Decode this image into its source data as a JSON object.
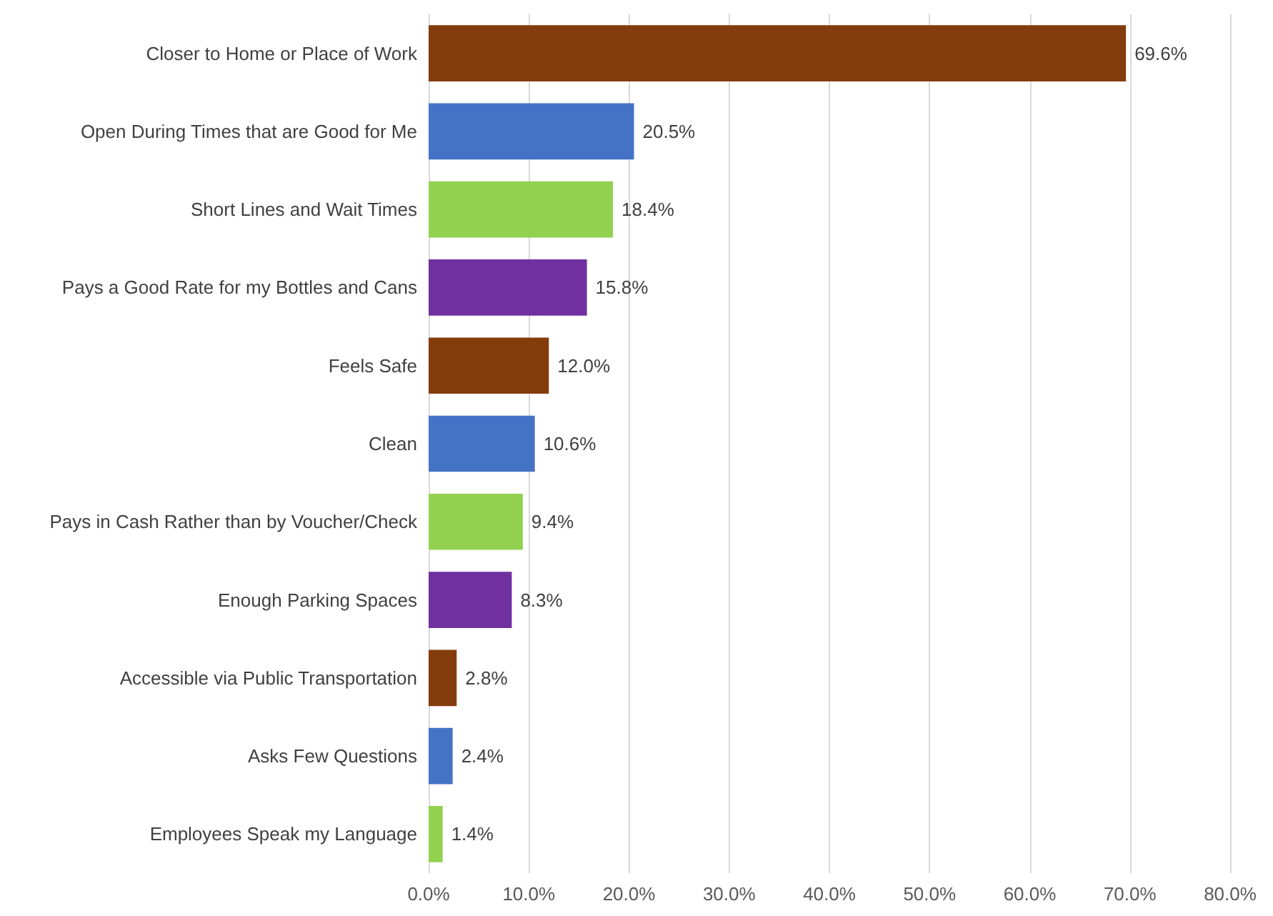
{
  "chart_data": {
    "type": "bar",
    "orientation": "horizontal",
    "categories": [
      "Closer to Home or Place of Work",
      "Open During Times that are Good for Me",
      "Short Lines and Wait Times",
      "Pays a Good Rate for my Bottles and Cans",
      "Feels Safe",
      "Clean",
      "Pays in Cash Rather than by Voucher/Check",
      "Enough Parking Spaces",
      "Accessible via Public Transportation",
      "Asks Few Questions",
      "Employees Speak my Language"
    ],
    "values": [
      69.6,
      20.5,
      18.4,
      15.8,
      12.0,
      10.6,
      9.4,
      8.3,
      2.8,
      2.4,
      1.4
    ],
    "colors": [
      "#843c0c",
      "#4472c4",
      "#92d050",
      "#7030a0",
      "#843c0c",
      "#4472c4",
      "#92d050",
      "#7030a0",
      "#843c0c",
      "#4472c4",
      "#92d050"
    ],
    "value_labels": [
      "69.6%",
      "20.5%",
      "18.4%",
      "15.8%",
      "12.0%",
      "10.6%",
      "9.4%",
      "8.3%",
      "2.8%",
      "2.4%",
      "1.4%"
    ],
    "xlim": [
      0,
      80
    ],
    "xticks": [
      {
        "value": 0,
        "label": "0.0%"
      },
      {
        "value": 10,
        "label": "10.0%"
      },
      {
        "value": 20,
        "label": "20.0%"
      },
      {
        "value": 30,
        "label": "30.0%"
      },
      {
        "value": 40,
        "label": "40.0%"
      },
      {
        "value": 50,
        "label": "50.0%"
      },
      {
        "value": 60,
        "label": "60.0%"
      },
      {
        "value": 70,
        "label": "70.0%"
      },
      {
        "value": 80,
        "label": "80.0%"
      }
    ],
    "grid": "x"
  }
}
